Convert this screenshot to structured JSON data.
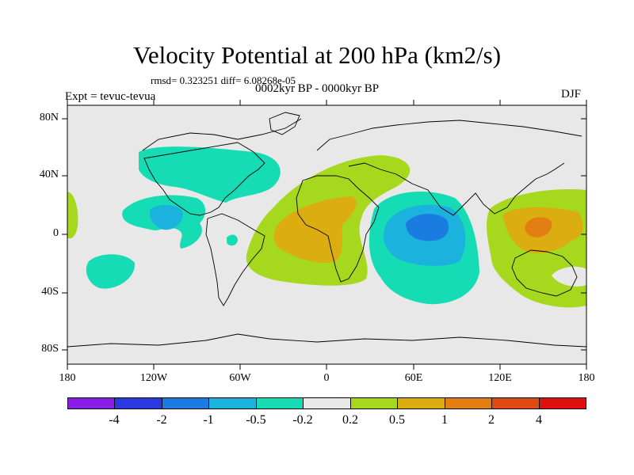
{
  "title": "Velocity Potential at 200 hPa (km2/s)",
  "stats": "rmsd= 0.323251 diff= 6.08268e-05",
  "subtitle": "0002kyr BP - 0000kyr BP",
  "experiment": "Expt = tevuc-tevua",
  "season": "DJF",
  "lat_labels": [
    "80N",
    "40N",
    "0",
    "40S",
    "80S"
  ],
  "lon_labels": [
    "180",
    "120W",
    "60W",
    "0",
    "60E",
    "120E",
    "180"
  ],
  "colorbar": {
    "labels": [
      "-4",
      "-2",
      "-1",
      "-0.5",
      "-0.2",
      "0.2",
      "0.5",
      "1",
      "2",
      "4"
    ],
    "colors": [
      "#8a1ee6",
      "#2a39e0",
      "#1a7be0",
      "#1bb2de",
      "#16dcb5",
      "#e8e8e8",
      "#a6d81e",
      "#dcad10",
      "#e27e12",
      "#de4a10",
      "#e01010"
    ]
  },
  "map": {
    "background": "#e8e8e8",
    "fields": [
      {
        "name": "north-america-atlantic-negative",
        "level": "-0.5",
        "color": "#16dcb5"
      },
      {
        "name": "east-pacific-negative",
        "level": "-0.5",
        "color": "#16dcb5"
      },
      {
        "name": "central-america-negative",
        "level": "-1",
        "color": "#1bb2de"
      },
      {
        "name": "south-pacific-negative",
        "level": "-0.5",
        "color": "#16dcb5"
      },
      {
        "name": "amazon-negative",
        "level": "-0.5",
        "color": "#16dcb5"
      },
      {
        "name": "dateline-positive",
        "level": "0.2",
        "color": "#a6d81e"
      },
      {
        "name": "africa-atlantic-positive",
        "level": "0.2",
        "color": "#a6d81e"
      },
      {
        "name": "africa-positive",
        "level": "0.5",
        "color": "#dcad10"
      },
      {
        "name": "indian-ocean-negative",
        "level": "-0.5",
        "color": "#16dcb5"
      },
      {
        "name": "indian-ocean-core",
        "level": "-1",
        "color": "#1bb2de"
      },
      {
        "name": "indian-ocean-center",
        "level": "-2",
        "color": "#1a7be0"
      },
      {
        "name": "maritime-continent-positive",
        "level": "0.2",
        "color": "#a6d81e"
      },
      {
        "name": "maritime-continent-core",
        "level": "0.5",
        "color": "#dcad10"
      },
      {
        "name": "maritime-continent-center",
        "level": "1",
        "color": "#e27e12"
      }
    ]
  }
}
